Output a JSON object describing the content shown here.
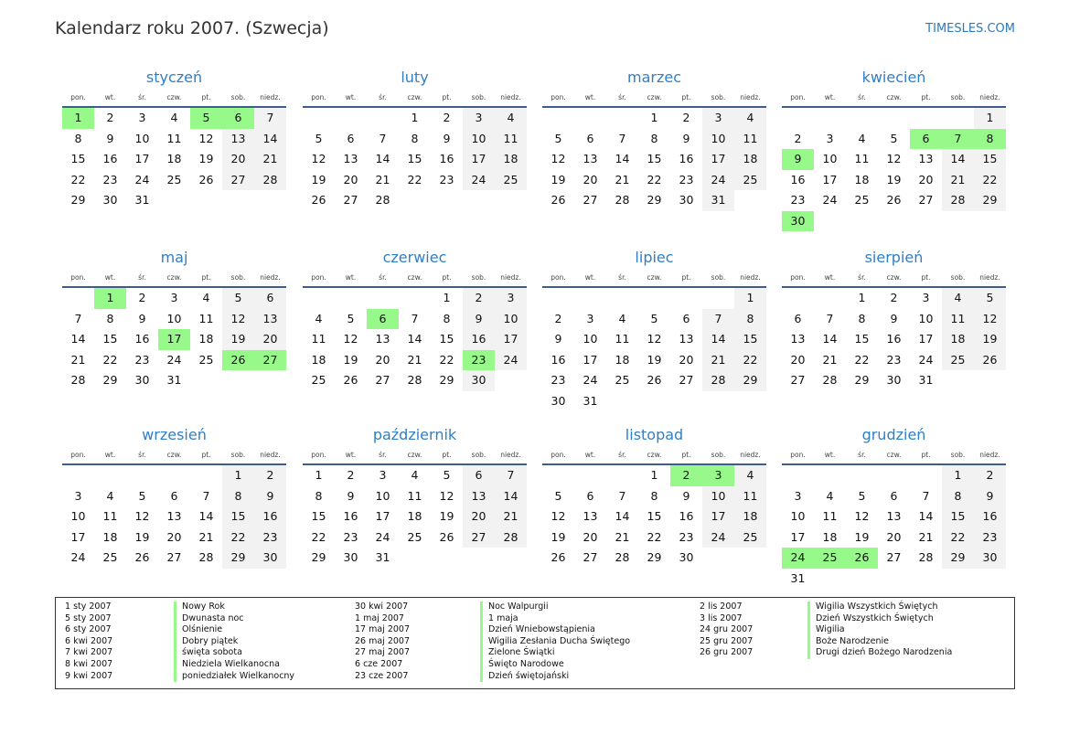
{
  "header": {
    "title": "Kalendarz roku 2007. (Szwecja)",
    "brand": "TIMESLES.COM"
  },
  "weekdays": [
    "pon.",
    "wt.",
    "śr.",
    "czw.",
    "pt.",
    "sob.",
    "niedz."
  ],
  "colors": {
    "holiday": "#98f98b",
    "weekend": "#f2f2f2",
    "month_title": "#2f7fc6"
  },
  "months": [
    {
      "name": "styczeń",
      "first_weekday": 0,
      "days": 31,
      "holidays": [
        1,
        5,
        6
      ]
    },
    {
      "name": "luty",
      "first_weekday": 3,
      "days": 28,
      "holidays": []
    },
    {
      "name": "marzec",
      "first_weekday": 3,
      "days": 31,
      "holidays": []
    },
    {
      "name": "kwiecień",
      "first_weekday": 6,
      "days": 30,
      "holidays": [
        6,
        7,
        8,
        9,
        30
      ]
    },
    {
      "name": "maj",
      "first_weekday": 1,
      "days": 31,
      "holidays": [
        1,
        17,
        26,
        27
      ]
    },
    {
      "name": "czerwiec",
      "first_weekday": 4,
      "days": 30,
      "holidays": [
        6,
        23
      ]
    },
    {
      "name": "lipiec",
      "first_weekday": 6,
      "days": 31,
      "holidays": []
    },
    {
      "name": "sierpień",
      "first_weekday": 2,
      "days": 31,
      "holidays": []
    },
    {
      "name": "wrzesień",
      "first_weekday": 5,
      "days": 30,
      "holidays": []
    },
    {
      "name": "październik",
      "first_weekday": 0,
      "days": 31,
      "holidays": []
    },
    {
      "name": "listopad",
      "first_weekday": 3,
      "days": 30,
      "holidays": [
        2,
        3
      ]
    },
    {
      "name": "grudzień",
      "first_weekday": 5,
      "days": 31,
      "holidays": [
        24,
        25,
        26
      ]
    }
  ],
  "legend": [
    [
      {
        "date": "1 sty 2007",
        "name": "Nowy Rok"
      },
      {
        "date": "5 sty 2007",
        "name": "Dwunasta noc"
      },
      {
        "date": "6 sty 2007",
        "name": "Olśnienie"
      },
      {
        "date": "6 kwi 2007",
        "name": "Dobry piątek"
      },
      {
        "date": "7 kwi 2007",
        "name": "święta sobota"
      },
      {
        "date": "8 kwi 2007",
        "name": "Niedziela Wielkanocna"
      },
      {
        "date": "9 kwi 2007",
        "name": "poniedziałek Wielkanocny"
      }
    ],
    [
      {
        "date": "30 kwi 2007",
        "name": "Noc Walpurgii"
      },
      {
        "date": "1 maj 2007",
        "name": "1 maja"
      },
      {
        "date": "17 maj 2007",
        "name": "Dzień Wniebowstąpienia"
      },
      {
        "date": "26 maj 2007",
        "name": "Wigilia Zesłania Ducha Świętego"
      },
      {
        "date": "27 maj 2007",
        "name": "Zielone Świątki"
      },
      {
        "date": "6 cze 2007",
        "name": "Święto Narodowe"
      },
      {
        "date": "23 cze 2007",
        "name": "Dzień świętojański"
      }
    ],
    [
      {
        "date": "2 lis 2007",
        "name": "Wigilia Wszystkich Świętych"
      },
      {
        "date": "3 lis 2007",
        "name": "Dzień Wszystkich Świętych"
      },
      {
        "date": "24 gru 2007",
        "name": "Wigilia"
      },
      {
        "date": "25 gru 2007",
        "name": "Boże Narodzenie"
      },
      {
        "date": "26 gru 2007",
        "name": "Drugi dzień Bożego Narodzenia"
      }
    ]
  ]
}
